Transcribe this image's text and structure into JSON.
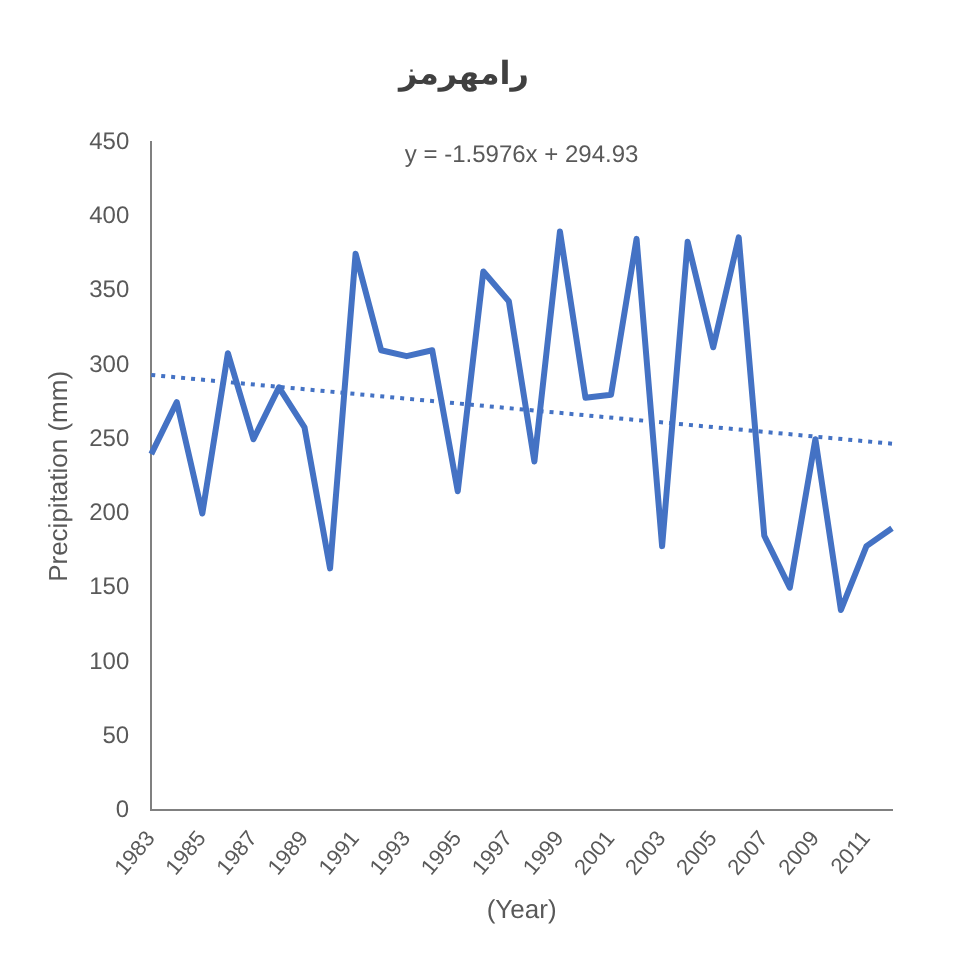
{
  "chart_data": {
    "type": "line",
    "title": "رامهرمز",
    "xlabel": "(Year)",
    "ylabel": "Precipitation (mm)",
    "categories": [
      "1983",
      null,
      "1985",
      null,
      "1987",
      null,
      "1989",
      null,
      "1991",
      null,
      "1993",
      null,
      "1995",
      null,
      "1997",
      null,
      "1999",
      null,
      "2001",
      null,
      "2003",
      null,
      "2005",
      null,
      "2007",
      null,
      "2009",
      null,
      "2011",
      null
    ],
    "series": [
      {
        "color": "#4472c4",
        "values": [
          240,
          275,
          200,
          308,
          250,
          285,
          258,
          163,
          375,
          310,
          306,
          310,
          215,
          363,
          343,
          235,
          390,
          278,
          280,
          385,
          178,
          383,
          312,
          386,
          185,
          150,
          250,
          135,
          178,
          190
        ]
      },
      {
        "type": "line",
        "color": "#4472c4",
        "line_style": "dotted",
        "values": [
          293.3,
          null,
          null,
          null,
          null,
          null,
          null,
          null,
          null,
          null,
          null,
          null,
          null,
          null,
          null,
          null,
          null,
          null,
          null,
          null,
          null,
          null,
          null,
          null,
          null,
          null,
          null,
          null,
          null,
          247.0
        ]
      }
    ],
    "annotations": [
      "y = -1.5976x + 294.93"
    ],
    "ylim": [
      0,
      450
    ],
    "yticks": [
      0,
      50,
      100,
      150,
      200,
      250,
      300,
      350,
      400,
      450
    ],
    "grid": false,
    "legend": false,
    "marker": "none",
    "line_style": "solid"
  }
}
